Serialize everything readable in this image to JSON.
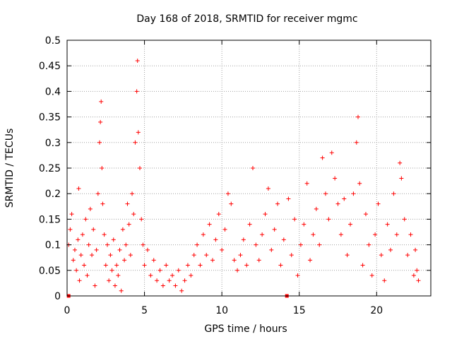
{
  "chart_data": {
    "type": "scatter",
    "title": "Day 168 of 2018, SRMTID for receiver mgmc",
    "xlabel": "GPS time / hours",
    "ylabel": "SRMTID / TECUs",
    "xlim": [
      0,
      23.5
    ],
    "ylim": [
      0,
      0.5
    ],
    "xticks": [
      0,
      5,
      10,
      15,
      20
    ],
    "xtick_labels": [
      "0",
      "5",
      "10",
      "15",
      "20"
    ],
    "yticks": [
      0,
      0.05,
      0.1,
      0.15,
      0.2,
      0.25,
      0.3,
      0.35,
      0.4,
      0.45,
      0.5
    ],
    "ytick_labels": [
      "0",
      "0.05",
      "0.1",
      "0.15",
      "0.2",
      "0.25",
      "0.3",
      "0.35",
      "0.4",
      "0.45",
      "0.5"
    ],
    "grid": true,
    "marker": "plus",
    "color": "#ff0000",
    "zero_markers_x": [
      0.1,
      14.2
    ],
    "series": [
      {
        "values": [
          [
            0.1,
            0.1
          ],
          [
            0.2,
            0.13
          ],
          [
            0.3,
            0.16
          ],
          [
            0.4,
            0.07
          ],
          [
            0.5,
            0.09
          ],
          [
            0.6,
            0.05
          ],
          [
            0.7,
            0.11
          ],
          [
            0.75,
            0.21
          ],
          [
            0.8,
            0.03
          ],
          [
            0.9,
            0.08
          ],
          [
            1.0,
            0.12
          ],
          [
            1.1,
            0.06
          ],
          [
            1.2,
            0.15
          ],
          [
            1.3,
            0.04
          ],
          [
            1.4,
            0.1
          ],
          [
            1.5,
            0.17
          ],
          [
            1.6,
            0.08
          ],
          [
            1.7,
            0.13
          ],
          [
            1.8,
            0.02
          ],
          [
            1.9,
            0.09
          ],
          [
            2.0,
            0.2
          ],
          [
            2.1,
            0.3
          ],
          [
            2.15,
            0.34
          ],
          [
            2.2,
            0.38
          ],
          [
            2.25,
            0.25
          ],
          [
            2.3,
            0.18
          ],
          [
            2.4,
            0.12
          ],
          [
            2.5,
            0.06
          ],
          [
            2.6,
            0.1
          ],
          [
            2.7,
            0.03
          ],
          [
            2.8,
            0.08
          ],
          [
            2.9,
            0.05
          ],
          [
            3.0,
            0.11
          ],
          [
            3.1,
            0.02
          ],
          [
            3.2,
            0.06
          ],
          [
            3.3,
            0.04
          ],
          [
            3.4,
            0.09
          ],
          [
            3.5,
            0.01
          ],
          [
            3.6,
            0.13
          ],
          [
            3.7,
            0.07
          ],
          [
            3.8,
            0.1
          ],
          [
            3.9,
            0.18
          ],
          [
            4.0,
            0.14
          ],
          [
            4.1,
            0.08
          ],
          [
            4.2,
            0.2
          ],
          [
            4.3,
            0.16
          ],
          [
            4.4,
            0.3
          ],
          [
            4.5,
            0.4
          ],
          [
            4.55,
            0.46
          ],
          [
            4.6,
            0.32
          ],
          [
            4.7,
            0.25
          ],
          [
            4.8,
            0.15
          ],
          [
            4.9,
            0.1
          ],
          [
            5.0,
            0.06
          ],
          [
            5.2,
            0.09
          ],
          [
            5.4,
            0.04
          ],
          [
            5.6,
            0.07
          ],
          [
            5.8,
            0.03
          ],
          [
            6.0,
            0.05
          ],
          [
            6.2,
            0.02
          ],
          [
            6.4,
            0.06
          ],
          [
            6.6,
            0.03
          ],
          [
            6.8,
            0.04
          ],
          [
            7.0,
            0.02
          ],
          [
            7.2,
            0.05
          ],
          [
            7.4,
            0.01
          ],
          [
            7.6,
            0.03
          ],
          [
            7.8,
            0.06
          ],
          [
            8.0,
            0.04
          ],
          [
            8.2,
            0.08
          ],
          [
            8.4,
            0.1
          ],
          [
            8.6,
            0.06
          ],
          [
            8.8,
            0.12
          ],
          [
            9.0,
            0.08
          ],
          [
            9.2,
            0.14
          ],
          [
            9.4,
            0.07
          ],
          [
            9.6,
            0.11
          ],
          [
            9.8,
            0.16
          ],
          [
            10.0,
            0.09
          ],
          [
            10.2,
            0.13
          ],
          [
            10.4,
            0.2
          ],
          [
            10.6,
            0.18
          ],
          [
            10.8,
            0.07
          ],
          [
            11.0,
            0.05
          ],
          [
            11.2,
            0.08
          ],
          [
            11.4,
            0.11
          ],
          [
            11.6,
            0.06
          ],
          [
            11.8,
            0.14
          ],
          [
            12.0,
            0.25
          ],
          [
            12.2,
            0.1
          ],
          [
            12.4,
            0.07
          ],
          [
            12.6,
            0.12
          ],
          [
            12.8,
            0.16
          ],
          [
            13.0,
            0.21
          ],
          [
            13.2,
            0.09
          ],
          [
            13.4,
            0.13
          ],
          [
            13.6,
            0.18
          ],
          [
            13.8,
            0.06
          ],
          [
            14.0,
            0.11
          ],
          [
            14.3,
            0.19
          ],
          [
            14.5,
            0.08
          ],
          [
            14.7,
            0.15
          ],
          [
            14.9,
            0.04
          ],
          [
            15.1,
            0.1
          ],
          [
            15.3,
            0.14
          ],
          [
            15.5,
            0.22
          ],
          [
            15.7,
            0.07
          ],
          [
            15.9,
            0.12
          ],
          [
            16.1,
            0.17
          ],
          [
            16.3,
            0.1
          ],
          [
            16.5,
            0.27
          ],
          [
            16.7,
            0.2
          ],
          [
            16.9,
            0.15
          ],
          [
            17.1,
            0.28
          ],
          [
            17.3,
            0.23
          ],
          [
            17.5,
            0.18
          ],
          [
            17.7,
            0.12
          ],
          [
            17.9,
            0.19
          ],
          [
            18.1,
            0.08
          ],
          [
            18.3,
            0.14
          ],
          [
            18.5,
            0.2
          ],
          [
            18.7,
            0.3
          ],
          [
            18.8,
            0.35
          ],
          [
            18.9,
            0.22
          ],
          [
            19.1,
            0.06
          ],
          [
            19.3,
            0.16
          ],
          [
            19.5,
            0.1
          ],
          [
            19.7,
            0.04
          ],
          [
            19.9,
            0.12
          ],
          [
            20.1,
            0.18
          ],
          [
            20.3,
            0.08
          ],
          [
            20.5,
            0.03
          ],
          [
            20.7,
            0.14
          ],
          [
            20.9,
            0.09
          ],
          [
            21.1,
            0.2
          ],
          [
            21.3,
            0.12
          ],
          [
            21.5,
            0.26
          ],
          [
            21.6,
            0.23
          ],
          [
            21.8,
            0.15
          ],
          [
            22.0,
            0.08
          ],
          [
            22.2,
            0.12
          ],
          [
            22.4,
            0.04
          ],
          [
            22.5,
            0.09
          ],
          [
            22.6,
            0.05
          ],
          [
            22.7,
            0.03
          ]
        ]
      }
    ]
  }
}
